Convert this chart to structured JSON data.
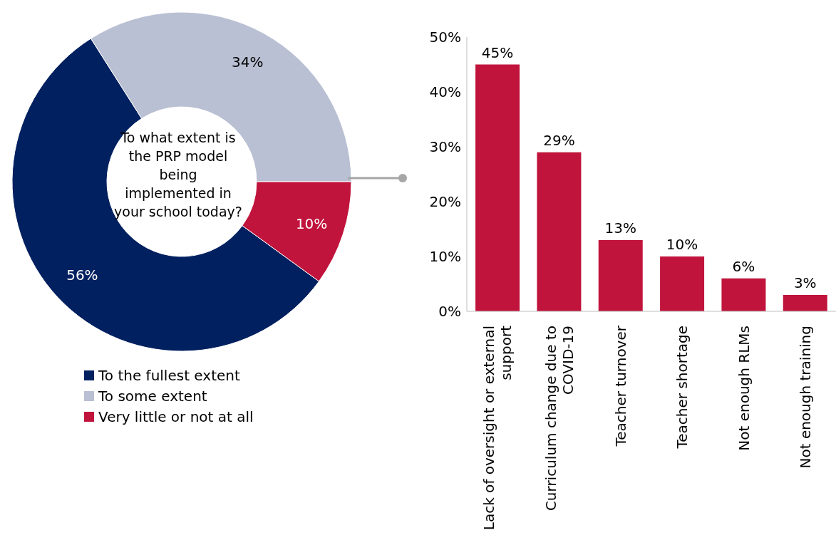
{
  "chart_data": [
    {
      "type": "donut",
      "title": "To what extent is the PRP model being implemented in your school today?",
      "categories": [
        "To the fullest extent",
        "To some extent",
        "Very little or not at all"
      ],
      "values": [
        56,
        34,
        10
      ],
      "colors": [
        "#002060",
        "#b9c0d3",
        "#c0143c"
      ],
      "value_labels": [
        "56%",
        "34%",
        "10%"
      ],
      "legend": "bottom"
    },
    {
      "type": "bar",
      "categories": [
        "Lack of oversight or external support",
        "Curriculum change due to COVID-19",
        "Teacher turnover",
        "Teacher shortage",
        "Not enough RLMs",
        "Not enough training"
      ],
      "values": [
        45,
        29,
        13,
        10,
        6,
        3
      ],
      "color": "#c0143c",
      "value_labels": [
        "45%",
        "29%",
        "13%",
        "10%",
        "6%",
        "3%"
      ],
      "ylim": [
        0,
        50
      ],
      "yticks": [
        {
          "value": 0,
          "label": "0%"
        },
        {
          "value": 10,
          "label": "10%"
        },
        {
          "value": 20,
          "label": "20%"
        },
        {
          "value": 30,
          "label": "30%"
        },
        {
          "value": 40,
          "label": "40%"
        },
        {
          "value": 50,
          "label": "50%"
        }
      ]
    }
  ]
}
